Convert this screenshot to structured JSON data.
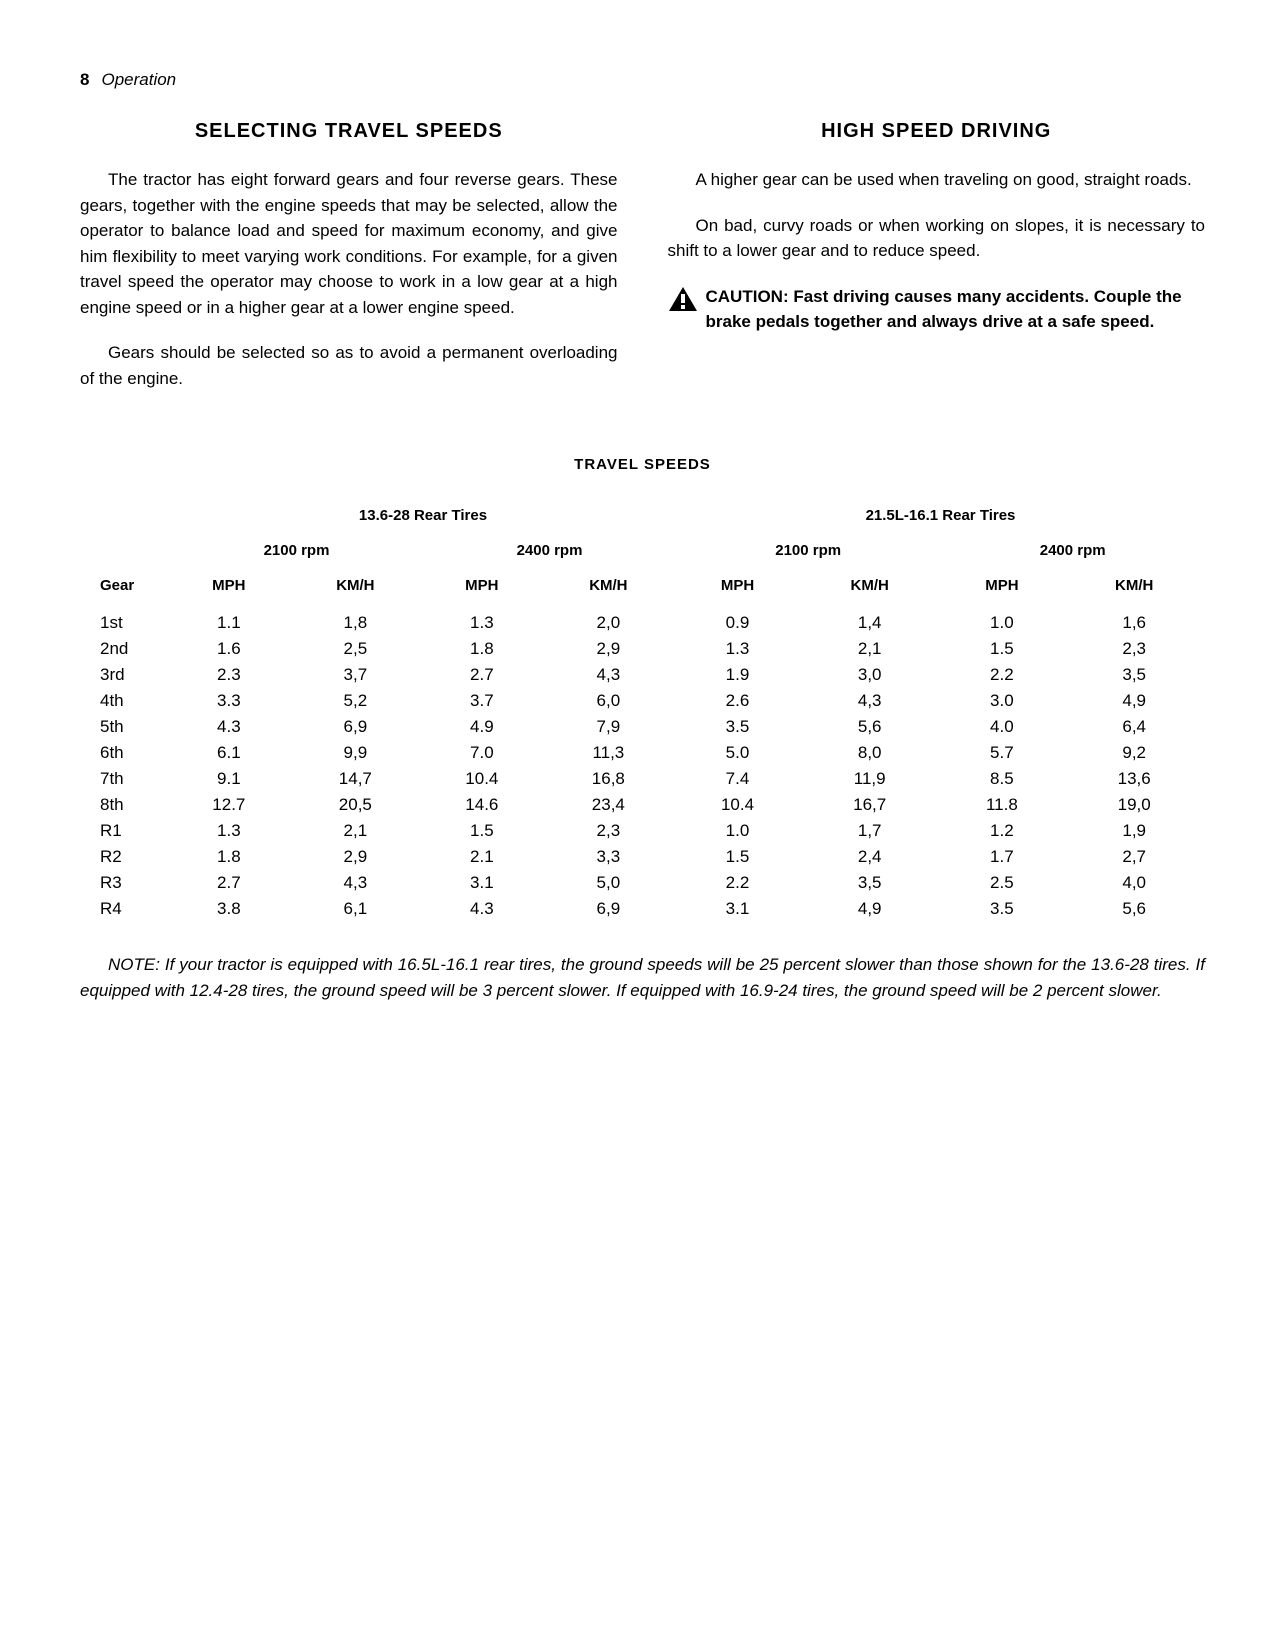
{
  "header": {
    "page_number": "8",
    "section": "Operation"
  },
  "left": {
    "heading": "SELECTING TRAVEL SPEEDS",
    "p1": "The tractor has eight forward gears and four reverse gears. These gears, together with the engine speeds that may be selected, allow the operator to balance load and speed for maximum economy, and give him flexibility to meet varying work conditions. For example, for a given travel speed the operator may choose to work in a low gear at a high engine speed or in a higher gear at a lower engine speed.",
    "p2": "Gears should be selected so as to avoid a permanent overloading of the engine."
  },
  "right": {
    "heading": "HIGH SPEED DRIVING",
    "p1": "A higher gear can be used when traveling on good, straight roads.",
    "p2": "On bad, curvy roads or when working on slopes, it is necessary to shift to a lower gear and to reduce speed.",
    "caution": "CAUTION: Fast driving causes many accidents. Couple the brake pedals together and always drive at a safe speed."
  },
  "table": {
    "title": "TRAVEL SPEEDS",
    "tire_a": "13.6-28 Rear Tires",
    "tire_b": "21.5L-16.1 Rear Tires",
    "rpm_a": "2100 rpm",
    "rpm_b": "2400 rpm",
    "gear_label": "Gear",
    "mph_label": "MPH",
    "kmh_label": "KM/H",
    "rows": [
      {
        "g": "1st",
        "a1m": "1.1",
        "a1k": "1,8",
        "a2m": "1.3",
        "a2k": "2,0",
        "b1m": "0.9",
        "b1k": "1,4",
        "b2m": "1.0",
        "b2k": "1,6"
      },
      {
        "g": "2nd",
        "a1m": "1.6",
        "a1k": "2,5",
        "a2m": "1.8",
        "a2k": "2,9",
        "b1m": "1.3",
        "b1k": "2,1",
        "b2m": "1.5",
        "b2k": "2,3"
      },
      {
        "g": "3rd",
        "a1m": "2.3",
        "a1k": "3,7",
        "a2m": "2.7",
        "a2k": "4,3",
        "b1m": "1.9",
        "b1k": "3,0",
        "b2m": "2.2",
        "b2k": "3,5"
      },
      {
        "g": "4th",
        "a1m": "3.3",
        "a1k": "5,2",
        "a2m": "3.7",
        "a2k": "6,0",
        "b1m": "2.6",
        "b1k": "4,3",
        "b2m": "3.0",
        "b2k": "4,9"
      },
      {
        "g": "5th",
        "a1m": "4.3",
        "a1k": "6,9",
        "a2m": "4.9",
        "a2k": "7,9",
        "b1m": "3.5",
        "b1k": "5,6",
        "b2m": "4.0",
        "b2k": "6,4"
      },
      {
        "g": "6th",
        "a1m": "6.1",
        "a1k": "9,9",
        "a2m": "7.0",
        "a2k": "11,3",
        "b1m": "5.0",
        "b1k": "8,0",
        "b2m": "5.7",
        "b2k": "9,2"
      },
      {
        "g": "7th",
        "a1m": "9.1",
        "a1k": "14,7",
        "a2m": "10.4",
        "a2k": "16,8",
        "b1m": "7.4",
        "b1k": "11,9",
        "b2m": "8.5",
        "b2k": "13,6"
      },
      {
        "g": "8th",
        "a1m": "12.7",
        "a1k": "20,5",
        "a2m": "14.6",
        "a2k": "23,4",
        "b1m": "10.4",
        "b1k": "16,7",
        "b2m": "11.8",
        "b2k": "19,0"
      },
      {
        "g": "R1",
        "a1m": "1.3",
        "a1k": "2,1",
        "a2m": "1.5",
        "a2k": "2,3",
        "b1m": "1.0",
        "b1k": "1,7",
        "b2m": "1.2",
        "b2k": "1,9"
      },
      {
        "g": "R2",
        "a1m": "1.8",
        "a1k": "2,9",
        "a2m": "2.1",
        "a2k": "3,3",
        "b1m": "1.5",
        "b1k": "2,4",
        "b2m": "1.7",
        "b2k": "2,7"
      },
      {
        "g": "R3",
        "a1m": "2.7",
        "a1k": "4,3",
        "a2m": "3.1",
        "a2k": "5,0",
        "b1m": "2.2",
        "b1k": "3,5",
        "b2m": "2.5",
        "b2k": "4,0"
      },
      {
        "g": "R4",
        "a1m": "3.8",
        "a1k": "6,1",
        "a2m": "4.3",
        "a2k": "6,9",
        "b1m": "3.1",
        "b1k": "4,9",
        "b2m": "3.5",
        "b2k": "5,6"
      }
    ]
  },
  "note": "NOTE: If your tractor is equipped with 16.5L-16.1 rear tires, the ground speeds will be 25 percent slower than those shown for the 13.6-28 tires. If equipped with 12.4-28 tires, the ground speed will be 3 percent slower. If equipped with 16.9-24 tires, the ground speed will be 2 percent slower."
}
